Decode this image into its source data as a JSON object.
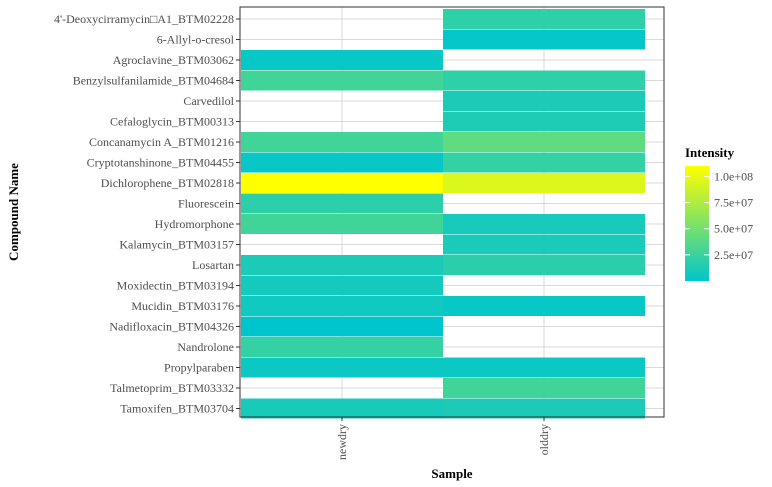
{
  "chart_data": {
    "type": "heatmap",
    "title": "",
    "xlabel": "Sample",
    "ylabel": "Compound Name",
    "x_categories": [
      "newdry",
      "olddry"
    ],
    "y_categories": [
      "4'-Deoxycirramycin□A1_BTM02228",
      "6-Allyl-o-cresol",
      "Agroclavine_BTM03062",
      "Benzylsulfanilamide_BTM04684",
      "Carvedilol",
      "Cefaloglycin_BTM00313",
      "Concanamycin A_BTM01216",
      "Cryptotanshinone_BTM04455",
      "Dichlorophene_BTM02818",
      "Fluorescein",
      "Hydromorphone",
      "Kalamycin_BTM03157",
      "Losartan",
      "Moxidectin_BTM03194",
      "Mucidin_BTM03176",
      "Nadifloxacin_BTM04326",
      "Nandrolone",
      "Propylparaben",
      "Talmetoprim_BTM03332",
      "Tamoxifen_BTM03704"
    ],
    "cells": [
      {
        "x": "olddry",
        "y": "4'-Deoxycirramycin□A1_BTM02228",
        "value": 20000000
      },
      {
        "x": "olddry",
        "y": "6-Allyl-o-cresol",
        "value": 2000000
      },
      {
        "x": "newdry",
        "y": "Agroclavine_BTM03062",
        "value": 3000000
      },
      {
        "x": "newdry",
        "y": "Benzylsulfanilamide_BTM04684",
        "value": 28000000
      },
      {
        "x": "olddry",
        "y": "Benzylsulfanilamide_BTM04684",
        "value": 20000000
      },
      {
        "x": "olddry",
        "y": "Carvedilol",
        "value": 12000000
      },
      {
        "x": "olddry",
        "y": "Cefaloglycin_BTM00313",
        "value": 13000000
      },
      {
        "x": "newdry",
        "y": "Concanamycin A_BTM01216",
        "value": 28000000
      },
      {
        "x": "olddry",
        "y": "Concanamycin A_BTM01216",
        "value": 42000000
      },
      {
        "x": "newdry",
        "y": "Cryptotanshinone_BTM04455",
        "value": 3000000
      },
      {
        "x": "olddry",
        "y": "Cryptotanshinone_BTM04455",
        "value": 22000000
      },
      {
        "x": "newdry",
        "y": "Dichlorophene_BTM02818",
        "value": 110000000
      },
      {
        "x": "olddry",
        "y": "Dichlorophene_BTM02818",
        "value": 95000000
      },
      {
        "x": "newdry",
        "y": "Fluorescein",
        "value": 19000000
      },
      {
        "x": "newdry",
        "y": "Hydromorphone",
        "value": 28000000
      },
      {
        "x": "olddry",
        "y": "Hydromorphone",
        "value": 10000000
      },
      {
        "x": "olddry",
        "y": "Kalamycin_BTM03157",
        "value": 11000000
      },
      {
        "x": "newdry",
        "y": "Losartan",
        "value": 12000000
      },
      {
        "x": "olddry",
        "y": "Losartan",
        "value": 18000000
      },
      {
        "x": "newdry",
        "y": "Moxidectin_BTM03194",
        "value": 9000000
      },
      {
        "x": "newdry",
        "y": "Mucidin_BTM03176",
        "value": 7000000
      },
      {
        "x": "olddry",
        "y": "Mucidin_BTM03176",
        "value": 3000000
      },
      {
        "x": "newdry",
        "y": "Nadifloxacin_BTM04326",
        "value": 500000
      },
      {
        "x": "newdry",
        "y": "Nandrolone",
        "value": 22000000
      },
      {
        "x": "newdry",
        "y": "Propylparaben",
        "value": 5000000
      },
      {
        "x": "olddry",
        "y": "Propylparaben",
        "value": 5000000
      },
      {
        "x": "olddry",
        "y": "Talmetoprim_BTM03332",
        "value": 28000000
      },
      {
        "x": "newdry",
        "y": "Tamoxifen_BTM03704",
        "value": 10000000
      },
      {
        "x": "olddry",
        "y": "Tamoxifen_BTM03704",
        "value": 12000000
      }
    ],
    "color_scale": {
      "low": "#00C5CD",
      "high": "#FFFF00",
      "min": 0,
      "max": 110000000
    },
    "grid": true,
    "legend": {
      "title": "Intensity",
      "placement": "right",
      "ticks": [
        {
          "value": 100000000,
          "label": "1.0e+08"
        },
        {
          "value": 75000000,
          "label": "7.5e+07"
        },
        {
          "value": 50000000,
          "label": "5.0e+07"
        },
        {
          "value": 25000000,
          "label": "2.5e+07"
        }
      ]
    }
  }
}
